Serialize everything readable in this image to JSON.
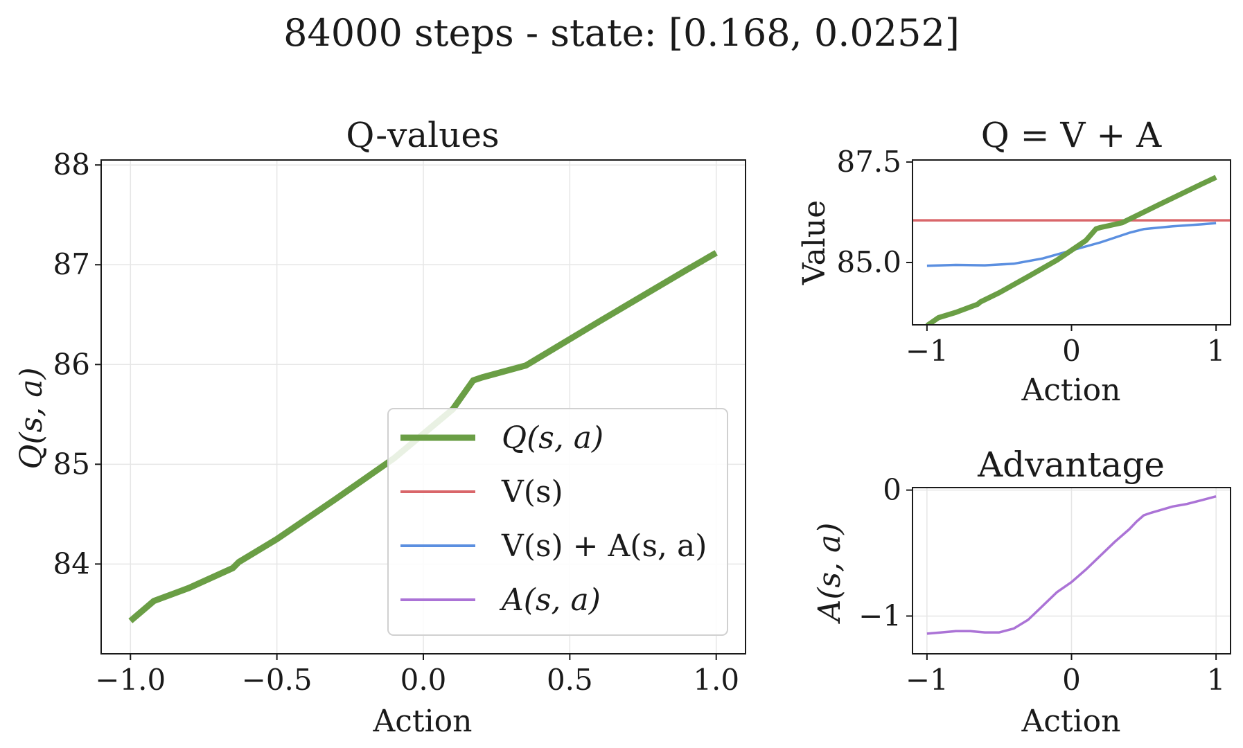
{
  "figure": {
    "suptitle": "84000 steps - state: [0.168, 0.0252]"
  },
  "colors": {
    "q": "#6a9e45",
    "v": "#d9666a",
    "va": "#5b8fe0",
    "adv": "#ab73d6",
    "grid": "#e6e6e6",
    "axis": "#1a1a1a"
  },
  "chart_data": [
    {
      "id": "qvalues",
      "type": "line",
      "title": "Q-values",
      "xlabel": "Action",
      "ylabel": "Q(s, a)",
      "xlim": [
        -1.1,
        1.1
      ],
      "ylim": [
        83.1,
        88.05
      ],
      "xticks": [
        -1.0,
        -0.5,
        0.0,
        0.5,
        1.0
      ],
      "xtick_labels": [
        "−1.0",
        "−0.5",
        "0.0",
        "0.5",
        "1.0"
      ],
      "yticks": [
        84,
        85,
        86,
        87,
        88
      ],
      "ytick_labels": [
        "84",
        "85",
        "86",
        "87",
        "88"
      ],
      "grid": true,
      "legend": {
        "placement": "lower-right",
        "entries": [
          {
            "label": "Q(s, a)",
            "color": "q",
            "italic": true
          },
          {
            "label": "V(s)",
            "color": "v",
            "italic": false
          },
          {
            "label": "V(s) + A(s, a)",
            "color": "va",
            "italic": false
          },
          {
            "label": "A(s, a)",
            "color": "adv",
            "italic": true
          }
        ]
      },
      "series": [
        {
          "name": "Q(s, a)",
          "color": "q",
          "x": [
            -1.0,
            -0.92,
            -0.8,
            -0.65,
            -0.63,
            -0.5,
            -0.3,
            -0.1,
            0.1,
            0.17,
            0.2,
            0.35,
            0.6,
            0.9,
            1.0
          ],
          "y": [
            83.43,
            83.63,
            83.76,
            83.96,
            84.02,
            84.25,
            84.65,
            85.06,
            85.55,
            85.84,
            85.87,
            85.99,
            86.43,
            86.95,
            87.12
          ]
        }
      ]
    },
    {
      "id": "decomp",
      "type": "line",
      "title": "Q = V + A",
      "xlabel": "Action",
      "ylabel": "Value",
      "xlim": [
        -1.1,
        1.1
      ],
      "ylim": [
        83.45,
        87.55
      ],
      "xticks": [
        -1,
        0,
        1
      ],
      "xtick_labels": [
        "−1",
        "0",
        "1"
      ],
      "yticks": [
        85.0,
        87.5
      ],
      "ytick_labels": [
        "85.0",
        "87.5"
      ],
      "grid": false,
      "series": [
        {
          "name": "V(s)",
          "color": "v",
          "x": [
            -1.1,
            1.1
          ],
          "y": [
            86.05,
            86.05
          ]
        },
        {
          "name": "V(s) + A(s, a)",
          "color": "va",
          "x": [
            -1.0,
            -0.8,
            -0.6,
            -0.4,
            -0.2,
            0.0,
            0.2,
            0.4,
            0.5,
            0.7,
            0.9,
            1.0
          ],
          "y": [
            84.92,
            84.94,
            84.93,
            84.97,
            85.1,
            85.3,
            85.5,
            85.74,
            85.83,
            85.9,
            85.95,
            85.98
          ]
        },
        {
          "name": "Q(s, a)",
          "color": "q",
          "x": [
            -1.0,
            -0.92,
            -0.8,
            -0.65,
            -0.63,
            -0.5,
            -0.3,
            -0.1,
            0.1,
            0.17,
            0.2,
            0.35,
            0.6,
            0.9,
            1.0
          ],
          "y": [
            83.43,
            83.63,
            83.76,
            83.96,
            84.02,
            84.25,
            84.65,
            85.06,
            85.55,
            85.84,
            85.87,
            85.99,
            86.43,
            86.95,
            87.12
          ]
        }
      ]
    },
    {
      "id": "advantage",
      "type": "line",
      "title": "Advantage",
      "xlabel": "Action",
      "ylabel": "A(s, a)",
      "xlim": [
        -1.1,
        1.1
      ],
      "ylim": [
        -1.3,
        0.02
      ],
      "xticks": [
        -1,
        0,
        1
      ],
      "xtick_labels": [
        "−1",
        "0",
        "1"
      ],
      "yticks": [
        -1,
        0
      ],
      "ytick_labels": [
        "−1",
        "0"
      ],
      "grid": true,
      "series": [
        {
          "name": "A(s, a)",
          "color": "adv",
          "x": [
            -1.0,
            -0.9,
            -0.8,
            -0.7,
            -0.6,
            -0.5,
            -0.4,
            -0.3,
            -0.2,
            -0.1,
            0.0,
            0.1,
            0.2,
            0.3,
            0.4,
            0.45,
            0.5,
            0.55,
            0.7,
            0.8,
            0.9,
            1.0
          ],
          "y": [
            -1.14,
            -1.13,
            -1.12,
            -1.12,
            -1.13,
            -1.13,
            -1.1,
            -1.03,
            -0.92,
            -0.81,
            -0.73,
            -0.63,
            -0.52,
            -0.41,
            -0.31,
            -0.25,
            -0.2,
            -0.18,
            -0.13,
            -0.11,
            -0.08,
            -0.05
          ]
        }
      ]
    }
  ]
}
